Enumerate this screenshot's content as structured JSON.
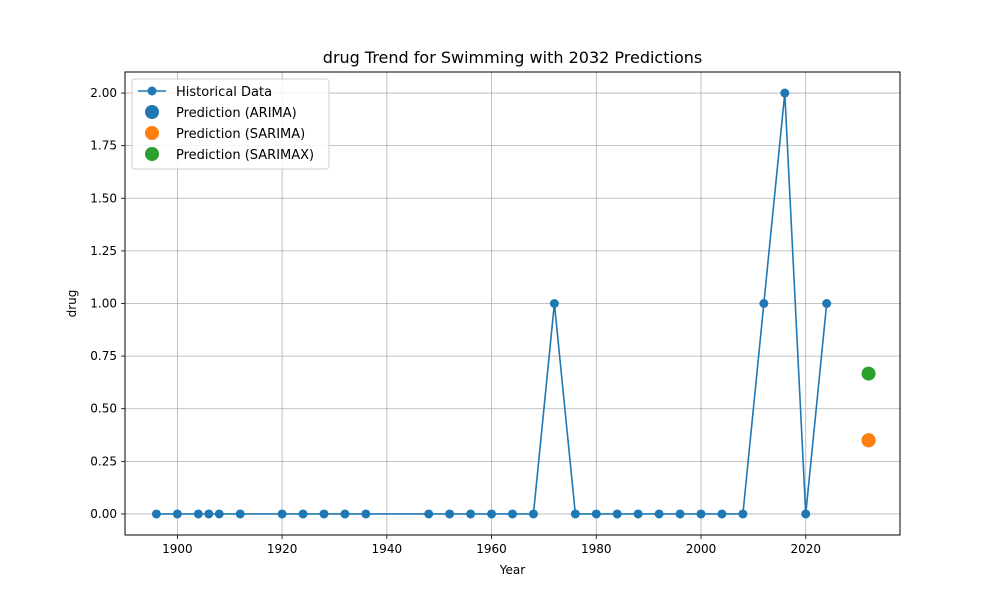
{
  "chart_data": {
    "type": "line",
    "title": "drug Trend for Swimming with 2032 Predictions",
    "xlabel": "Year",
    "ylabel": "drug",
    "xlim": [
      1890,
      2038
    ],
    "ylim": [
      -0.1,
      2.1
    ],
    "xticks": [
      1900,
      1920,
      1940,
      1960,
      1980,
      2000,
      2020
    ],
    "yticks": [
      0.0,
      0.25,
      0.5,
      0.75,
      1.0,
      1.25,
      1.5,
      1.75,
      2.0
    ],
    "ytick_labels": [
      "0.00",
      "0.25",
      "0.50",
      "0.75",
      "1.00",
      "1.25",
      "1.50",
      "1.75",
      "2.00"
    ],
    "grid": true,
    "legend_position": "top-left",
    "series": [
      {
        "name": "Historical Data",
        "kind": "line-marker",
        "color": "#1f77b4",
        "x": [
          1896,
          1900,
          1904,
          1906,
          1908,
          1912,
          1920,
          1924,
          1928,
          1932,
          1936,
          1948,
          1952,
          1956,
          1960,
          1964,
          1968,
          1972,
          1976,
          1980,
          1984,
          1988,
          1992,
          1996,
          2000,
          2004,
          2008,
          2012,
          2016,
          2020,
          2024
        ],
        "y": [
          0,
          0,
          0,
          0,
          0,
          0,
          0,
          0,
          0,
          0,
          0,
          0,
          0,
          0,
          0,
          0,
          0,
          1,
          0,
          0,
          0,
          0,
          0,
          0,
          0,
          0,
          0,
          1,
          2,
          0,
          1
        ]
      },
      {
        "name": "Prediction (ARIMA)",
        "kind": "point",
        "color": "#1f77b4",
        "x": [
          2032
        ],
        "y": [
          0.35
        ]
      },
      {
        "name": "Prediction (SARIMA)",
        "kind": "point",
        "color": "#ff7f0e",
        "x": [
          2032
        ],
        "y": [
          0.35
        ]
      },
      {
        "name": "Prediction (SARIMAX)",
        "kind": "point",
        "color": "#2ca02c",
        "x": [
          2032
        ],
        "y": [
          0.667
        ]
      }
    ]
  }
}
